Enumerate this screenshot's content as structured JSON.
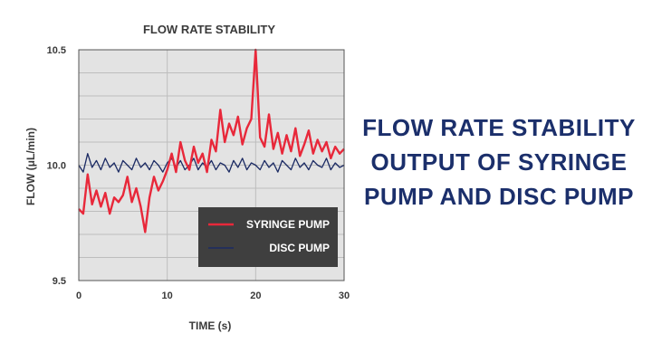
{
  "headline": {
    "lines": [
      "FLOW RATE STABILITY",
      "OUTPUT OF SYRINGE",
      "PUMP AND DISC PUMP"
    ],
    "color": "#1b2f6b"
  },
  "chart_data": {
    "type": "line",
    "title": "FLOW RATE STABILITY",
    "xlabel": "TIME (s)",
    "ylabel": "FLOW (μL/min)",
    "xlim": [
      0,
      30
    ],
    "ylim": [
      9.5,
      10.5
    ],
    "x_ticks": [
      "0",
      "10",
      "20",
      "30"
    ],
    "y_ticks": [
      "9.5",
      "10.0",
      "10.5"
    ],
    "grid": true,
    "legend_position": "bottom-right",
    "plot_background": "#e3e3e3",
    "legend_background": "#3f3f3f",
    "series": [
      {
        "name": "SYRINGE PUMP",
        "color": "#e8283a",
        "x": [
          0,
          0.5,
          1,
          1.5,
          2,
          2.5,
          3,
          3.5,
          4,
          4.5,
          5,
          5.5,
          6,
          6.5,
          7,
          7.5,
          8,
          8.5,
          9,
          9.5,
          10,
          10.5,
          11,
          11.5,
          12,
          12.5,
          13,
          13.5,
          14,
          14.5,
          15,
          15.5,
          16,
          16.5,
          17,
          17.5,
          18,
          18.5,
          19,
          19.5,
          20,
          20.5,
          21,
          21.5,
          22,
          22.5,
          23,
          23.5,
          24,
          24.5,
          25,
          25.5,
          26,
          26.5,
          27,
          27.5,
          28,
          28.5,
          29,
          29.5,
          30
        ],
        "y": [
          9.81,
          9.79,
          9.96,
          9.83,
          9.89,
          9.82,
          9.88,
          9.79,
          9.86,
          9.84,
          9.87,
          9.95,
          9.84,
          9.9,
          9.82,
          9.71,
          9.86,
          9.95,
          9.89,
          9.93,
          9.98,
          10.05,
          9.97,
          10.1,
          10.02,
          9.98,
          10.08,
          10.01,
          10.05,
          9.97,
          10.11,
          10.06,
          10.24,
          10.1,
          10.18,
          10.13,
          10.21,
          10.09,
          10.16,
          10.2,
          10.5,
          10.12,
          10.08,
          10.22,
          10.07,
          10.14,
          10.05,
          10.13,
          10.06,
          10.16,
          10.04,
          10.09,
          10.15,
          10.05,
          10.11,
          10.06,
          10.1,
          10.03,
          10.08,
          10.05,
          10.07
        ]
      },
      {
        "name": "DISC PUMP",
        "color": "#1b2a63",
        "x": [
          0,
          0.5,
          1,
          1.5,
          2,
          2.5,
          3,
          3.5,
          4,
          4.5,
          5,
          5.5,
          6,
          6.5,
          7,
          7.5,
          8,
          8.5,
          9,
          9.5,
          10,
          10.5,
          11,
          11.5,
          12,
          12.5,
          13,
          13.5,
          14,
          14.5,
          15,
          15.5,
          16,
          16.5,
          17,
          17.5,
          18,
          18.5,
          19,
          19.5,
          20,
          20.5,
          21,
          21.5,
          22,
          22.5,
          23,
          23.5,
          24,
          24.5,
          25,
          25.5,
          26,
          26.5,
          27,
          27.5,
          28,
          28.5,
          29,
          29.5,
          30
        ],
        "y": [
          10.0,
          9.97,
          10.05,
          9.99,
          10.02,
          9.98,
          10.03,
          9.99,
          10.01,
          9.97,
          10.02,
          10.0,
          9.98,
          10.03,
          9.99,
          10.01,
          9.98,
          10.02,
          10.0,
          9.97,
          10.01,
          10.03,
          9.99,
          10.02,
          9.98,
          10.0,
          10.03,
          9.98,
          10.01,
          9.99,
          10.02,
          9.98,
          10.01,
          10.0,
          9.97,
          10.02,
          9.99,
          10.03,
          9.98,
          10.01,
          10.0,
          9.98,
          10.02,
          9.99,
          10.01,
          9.97,
          10.02,
          10.0,
          9.98,
          10.03,
          9.99,
          10.01,
          9.98,
          10.02,
          10.0,
          9.99,
          10.03,
          9.98,
          10.01,
          9.99,
          10.0
        ]
      }
    ]
  }
}
